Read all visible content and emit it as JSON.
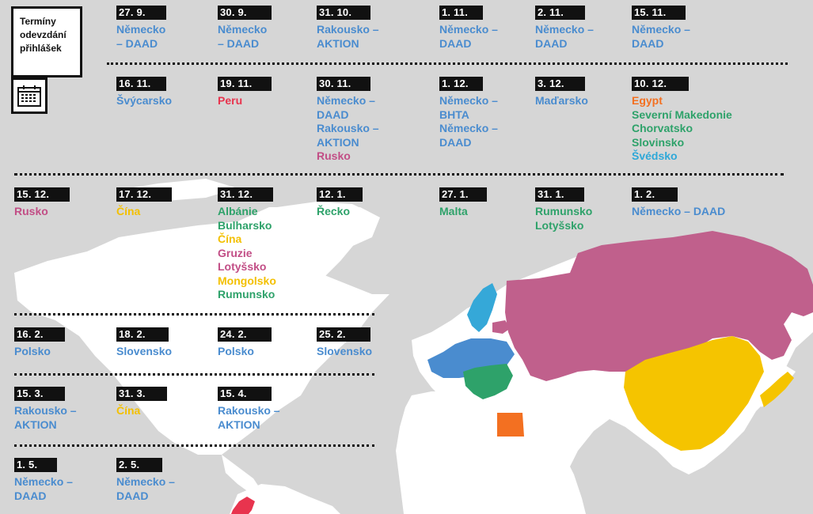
{
  "colors": {
    "blue": "#4a8ccf",
    "green": "#2ea26a",
    "pink": "#c24e86",
    "yellow": "#f3c000",
    "orange": "#f37021",
    "red": "#e8344e",
    "lightblue": "#2ea8d8"
  },
  "header": {
    "title": "Termíny\nodevzdání\npřihlášek",
    "icon": "calendar-icon"
  },
  "entries": [
    {
      "date": "27. 9.",
      "countries": [
        {
          "text": "Německo",
          "color": "blue"
        },
        {
          "text": "– DAAD",
          "color": "blue"
        }
      ]
    },
    {
      "date": "30. 9.",
      "countries": [
        {
          "text": "Německo",
          "color": "blue"
        },
        {
          "text": "– DAAD",
          "color": "blue"
        }
      ]
    },
    {
      "date": "31. 10.",
      "countries": [
        {
          "text": "Rakousko –",
          "color": "blue"
        },
        {
          "text": "AKTION",
          "color": "blue"
        }
      ]
    },
    {
      "date": "1. 11.",
      "countries": [
        {
          "text": "Německo –",
          "color": "blue"
        },
        {
          "text": "DAAD",
          "color": "blue"
        }
      ]
    },
    {
      "date": "2. 11.",
      "countries": [
        {
          "text": "Německo –",
          "color": "blue"
        },
        {
          "text": "DAAD",
          "color": "blue"
        }
      ]
    },
    {
      "date": "15. 11.",
      "countries": [
        {
          "text": "Německo –",
          "color": "blue"
        },
        {
          "text": "DAAD",
          "color": "blue"
        }
      ]
    },
    {
      "date": "16. 11.",
      "countries": [
        {
          "text": "Švýcarsko",
          "color": "blue"
        }
      ]
    },
    {
      "date": "19. 11.",
      "countries": [
        {
          "text": "Peru",
          "color": "red"
        }
      ]
    },
    {
      "date": "30. 11.",
      "countries": [
        {
          "text": "Německo –",
          "color": "blue"
        },
        {
          "text": "DAAD",
          "color": "blue"
        },
        {
          "text": "Rakousko –",
          "color": "blue"
        },
        {
          "text": "AKTION",
          "color": "blue"
        },
        {
          "text": "Rusko",
          "color": "pink"
        }
      ]
    },
    {
      "date": "1. 12.",
      "countries": [
        {
          "text": "Německo –",
          "color": "blue"
        },
        {
          "text": "BHTA",
          "color": "blue"
        },
        {
          "text": "Německo –",
          "color": "blue"
        },
        {
          "text": "DAAD",
          "color": "blue"
        }
      ]
    },
    {
      "date": "3. 12.",
      "countries": [
        {
          "text": "Maďarsko",
          "color": "blue"
        }
      ]
    },
    {
      "date": "10. 12.",
      "countries": [
        {
          "text": "Egypt",
          "color": "orange"
        },
        {
          "text": "Severní Makedonie",
          "color": "green"
        },
        {
          "text": "Chorvatsko",
          "color": "green"
        },
        {
          "text": "Slovinsko",
          "color": "green"
        },
        {
          "text": "Švédsko",
          "color": "lightblue"
        }
      ]
    },
    {
      "date": "15. 12.",
      "countries": [
        {
          "text": "Rusko",
          "color": "pink"
        }
      ]
    },
    {
      "date": "17. 12.",
      "countries": [
        {
          "text": "Čína",
          "color": "yellow"
        }
      ]
    },
    {
      "date": "31. 12.",
      "countries": [
        {
          "text": "Albánie",
          "color": "green"
        },
        {
          "text": "Bulharsko",
          "color": "green"
        },
        {
          "text": "Čína",
          "color": "yellow"
        },
        {
          "text": "Gruzie",
          "color": "pink"
        },
        {
          "text": "Lotyšsko",
          "color": "pink"
        },
        {
          "text": "Mongolsko",
          "color": "yellow"
        },
        {
          "text": "Rumunsko",
          "color": "green"
        }
      ]
    },
    {
      "date": "12. 1.",
      "countries": [
        {
          "text": "Řecko",
          "color": "green"
        }
      ]
    },
    {
      "date": "27. 1.",
      "countries": [
        {
          "text": "Malta",
          "color": "green"
        }
      ]
    },
    {
      "date": "31. 1.",
      "countries": [
        {
          "text": "Rumunsko",
          "color": "green"
        },
        {
          "text": "Lotyšsko",
          "color": "green"
        }
      ]
    },
    {
      "date": "1. 2.",
      "countries": [
        {
          "text": "Německo – DAAD",
          "color": "blue"
        }
      ]
    },
    {
      "date": "16. 2.",
      "countries": [
        {
          "text": "Polsko",
          "color": "blue"
        }
      ]
    },
    {
      "date": "18. 2.",
      "countries": [
        {
          "text": "Slovensko",
          "color": "blue"
        }
      ]
    },
    {
      "date": "24. 2.",
      "countries": [
        {
          "text": "Polsko",
          "color": "blue"
        }
      ]
    },
    {
      "date": "25. 2.",
      "countries": [
        {
          "text": "Slovensko",
          "color": "blue"
        }
      ]
    },
    {
      "date": "15. 3.",
      "countries": [
        {
          "text": "Rakousko –",
          "color": "blue"
        },
        {
          "text": "AKTION",
          "color": "blue"
        }
      ]
    },
    {
      "date": "31. 3.",
      "countries": [
        {
          "text": "Čína",
          "color": "yellow"
        }
      ]
    },
    {
      "date": "15. 4.",
      "countries": [
        {
          "text": "Rakousko –",
          "color": "blue"
        },
        {
          "text": "AKTION",
          "color": "blue"
        }
      ]
    },
    {
      "date": "1. 5.",
      "countries": [
        {
          "text": "Německo –",
          "color": "blue"
        },
        {
          "text": "DAAD",
          "color": "blue"
        }
      ]
    },
    {
      "date": "2. 5.",
      "countries": [
        {
          "text": "Německo –",
          "color": "blue"
        },
        {
          "text": "DAAD",
          "color": "blue"
        }
      ]
    }
  ]
}
